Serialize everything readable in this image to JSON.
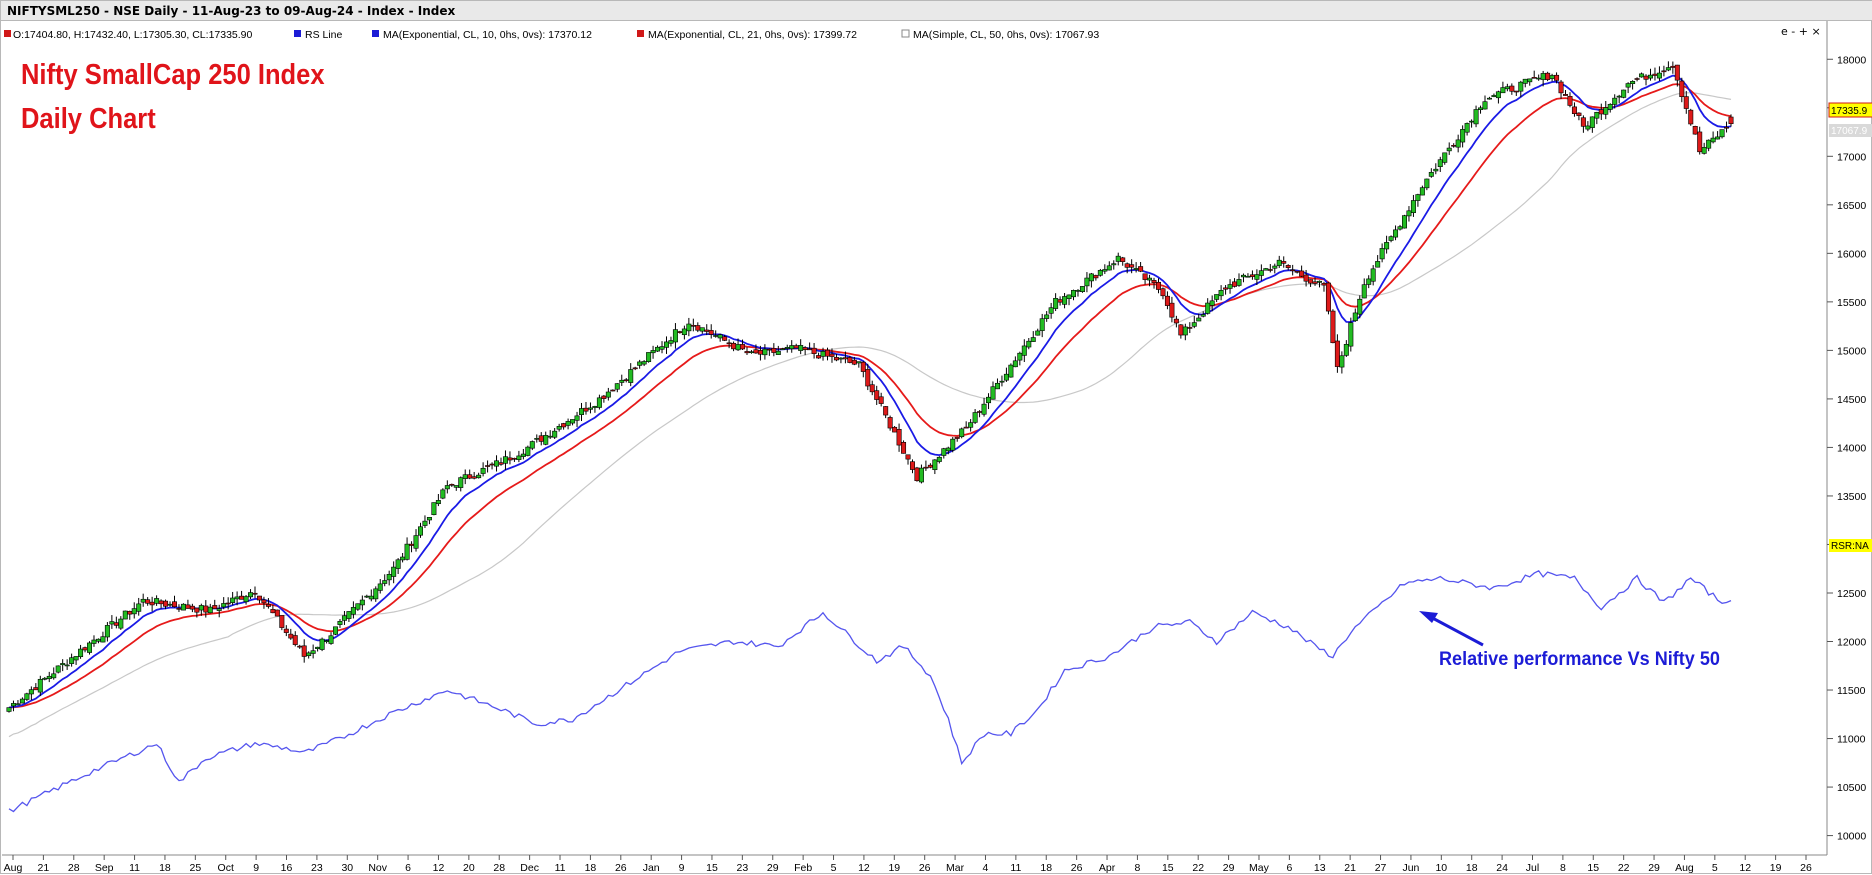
{
  "window": {
    "title": "NIFTYSML250 - NSE Daily - 11-Aug-23 to 09-Aug-24 - Index - Index"
  },
  "legend": {
    "ohlc": "O:17404.80, H:17432.40, L:17305.30, CL:17335.90",
    "items": [
      {
        "label": "RS Line",
        "color": "#1c1cd6"
      },
      {
        "label": "MA(Exponential, CL, 10, 0hs, 0vs): 17370.12",
        "color": "#d01818"
      },
      {
        "label": "MA(Exponential, CL, 21, 0hs, 0vs): 17399.72",
        "color": "#d01818"
      },
      {
        "label": "MA(Simple, CL, 50, 0hs, 0vs): 17067.93",
        "color": "#ffffff"
      }
    ],
    "window_controls": "e - + ×"
  },
  "overlay": {
    "title_line1": "Nifty SmallCap 250 Index",
    "title_line2": "Daily Chart",
    "annotation": "Relative performance Vs Nifty 50"
  },
  "price_tags": {
    "last": "17335.9",
    "ma50": "17067.9",
    "rsr": "RSR:NA"
  },
  "colors": {
    "up": "#22bb22",
    "down": "#dd1a1a",
    "ema10": "#1a1ae6",
    "ema21": "#e61a1a",
    "sma50": "#c8c8c8",
    "rs": "#5555ee",
    "last_tag": "#ffff00"
  },
  "chart_data": {
    "type": "candlestick",
    "x_range": [
      "2023-08-11",
      "2024-08-09"
    ],
    "ylim": [
      9800,
      18250
    ],
    "y_ticks": [
      10000,
      10500,
      11000,
      11500,
      12000,
      12500,
      13000,
      13500,
      14000,
      14500,
      15000,
      15500,
      16000,
      16500,
      17000,
      17500,
      18000
    ],
    "x_ticks": [
      "Aug",
      "21",
      "28",
      "Sep",
      "11",
      "18",
      "25",
      "Oct",
      "9",
      "16",
      "23",
      "30",
      "Nov",
      "6",
      "12",
      "20",
      "28",
      "Dec",
      "11",
      "18",
      "26",
      "Jan",
      "9",
      "15",
      "23",
      "29",
      "Feb",
      "5",
      "12",
      "19",
      "26",
      "Mar",
      "4",
      "11",
      "18",
      "26",
      "Apr",
      "8",
      "15",
      "22",
      "29",
      "May",
      "6",
      "13",
      "21",
      "27",
      "Jun",
      "10",
      "18",
      "24",
      "Jul",
      "8",
      "15",
      "22",
      "29",
      "Aug",
      "5",
      "12",
      "19",
      "26"
    ],
    "close_keypoints": [
      [
        0,
        11320
      ],
      [
        30,
        12420
      ],
      [
        45,
        12320
      ],
      [
        55,
        12530
      ],
      [
        66,
        11850
      ],
      [
        72,
        12080
      ],
      [
        86,
        12750
      ],
      [
        98,
        13600
      ],
      [
        110,
        13850
      ],
      [
        116,
        14000
      ],
      [
        132,
        14500
      ],
      [
        152,
        15300
      ],
      [
        166,
        14950
      ],
      [
        176,
        15020
      ],
      [
        190,
        14850
      ],
      [
        203,
        13700
      ],
      [
        214,
        14200
      ],
      [
        234,
        15500
      ],
      [
        248,
        15950
      ],
      [
        258,
        15600
      ],
      [
        262,
        15150
      ],
      [
        272,
        15650
      ],
      [
        284,
        15900
      ],
      [
        294,
        15650
      ],
      [
        297,
        14800
      ],
      [
        303,
        15700
      ],
      [
        316,
        16700
      ],
      [
        330,
        17600
      ],
      [
        345,
        17850
      ],
      [
        352,
        17300
      ],
      [
        362,
        17750
      ],
      [
        372,
        17950
      ],
      [
        374,
        17650
      ],
      [
        378,
        17050
      ],
      [
        385,
        17335
      ]
    ],
    "series": [
      {
        "name": "MA(Exponential, CL, 10)",
        "last": 17370.12
      },
      {
        "name": "MA(Exponential, CL, 21)",
        "last": 17399.72
      },
      {
        "name": "MA(Simple, CL, 50)",
        "last": 17067.93
      },
      {
        "name": "RS Line",
        "keypoints": [
          [
            0,
            10250
          ],
          [
            18,
            10650
          ],
          [
            33,
            10950
          ],
          [
            38,
            10550
          ],
          [
            44,
            10800
          ],
          [
            55,
            10950
          ],
          [
            62,
            10900
          ],
          [
            66,
            10850
          ],
          [
            74,
            11000
          ],
          [
            85,
            11250
          ],
          [
            98,
            11500
          ],
          [
            110,
            11300
          ],
          [
            118,
            11150
          ],
          [
            126,
            11200
          ],
          [
            138,
            11550
          ],
          [
            150,
            11900
          ],
          [
            162,
            12000
          ],
          [
            172,
            11950
          ],
          [
            182,
            12300
          ],
          [
            194,
            11800
          ],
          [
            200,
            11950
          ],
          [
            206,
            11650
          ],
          [
            210,
            11200
          ],
          [
            213,
            10750
          ],
          [
            218,
            11050
          ],
          [
            224,
            11050
          ],
          [
            230,
            11300
          ],
          [
            236,
            11700
          ],
          [
            246,
            11850
          ],
          [
            256,
            12150
          ],
          [
            264,
            12200
          ],
          [
            270,
            12000
          ],
          [
            278,
            12300
          ],
          [
            286,
            12150
          ],
          [
            292,
            11950
          ],
          [
            296,
            11850
          ],
          [
            300,
            12100
          ],
          [
            306,
            12350
          ],
          [
            312,
            12600
          ],
          [
            320,
            12650
          ],
          [
            332,
            12550
          ],
          [
            342,
            12700
          ],
          [
            350,
            12650
          ],
          [
            356,
            12350
          ],
          [
            364,
            12650
          ],
          [
            370,
            12400
          ],
          [
            376,
            12650
          ],
          [
            383,
            12400
          ],
          [
            385,
            12450
          ]
        ]
      }
    ]
  }
}
